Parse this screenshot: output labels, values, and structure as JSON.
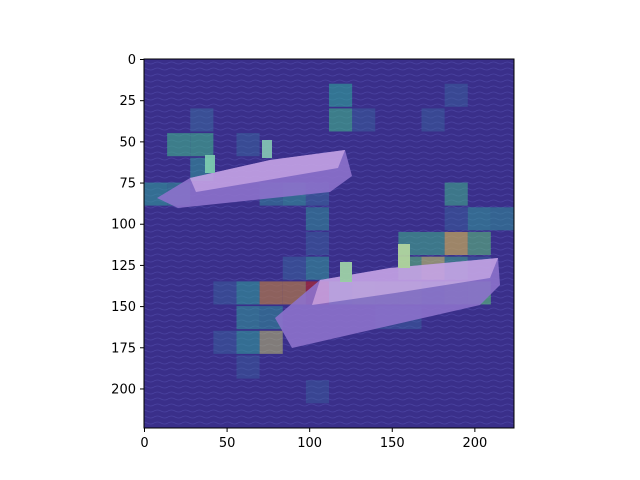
{
  "figure": {
    "x_ticks": [
      "0",
      "50",
      "100",
      "150",
      "200"
    ],
    "y_ticks": [
      "0",
      "25",
      "50",
      "75",
      "100",
      "125",
      "150",
      "175",
      "200"
    ],
    "x_tick_values": [
      0,
      50,
      100,
      150,
      200
    ],
    "y_tick_values": [
      0,
      25,
      50,
      75,
      100,
      125,
      150,
      175,
      200
    ],
    "x_range": [
      0,
      224
    ],
    "y_range": [
      0,
      224
    ],
    "y_inverted": true,
    "grid": false,
    "colormap": "viridis (jet-like heatmap overlay)",
    "image_subject": "two aircraft carriers on dark blue sea water with attention heatmap overlay",
    "colors": {
      "background_overlay": "#3b2f8f",
      "sea": "#2a2f6e",
      "ship_hull": "#9b7fd6",
      "ship_deck": "#c9a6e6",
      "heat_teal": "#2fa39a",
      "heat_green": "#5cc57a",
      "heat_yellow": "#c7c96a",
      "heat_red": "#a0283a"
    }
  }
}
